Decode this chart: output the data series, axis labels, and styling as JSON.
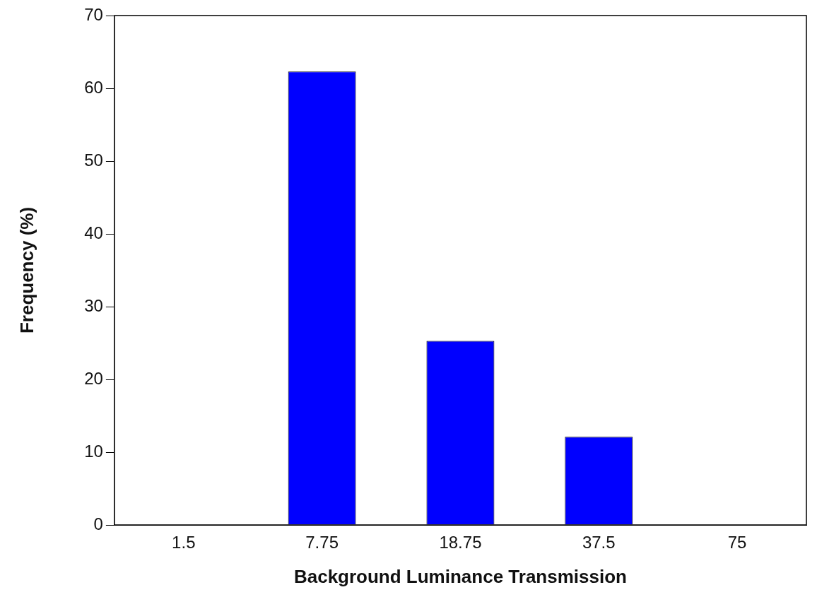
{
  "chart_data": {
    "type": "bar",
    "xlabel": "Background Luminance Transmission",
    "ylabel": "Frequency (%)",
    "categories": [
      "1.5",
      "7.75",
      "18.75",
      "37.5",
      "75"
    ],
    "values": [
      0,
      62.3,
      25.3,
      12.1,
      0
    ],
    "color": "#0000ff",
    "ylim": [
      0,
      70
    ],
    "yticks": [
      0,
      10,
      20,
      30,
      40,
      50,
      60,
      70
    ]
  }
}
